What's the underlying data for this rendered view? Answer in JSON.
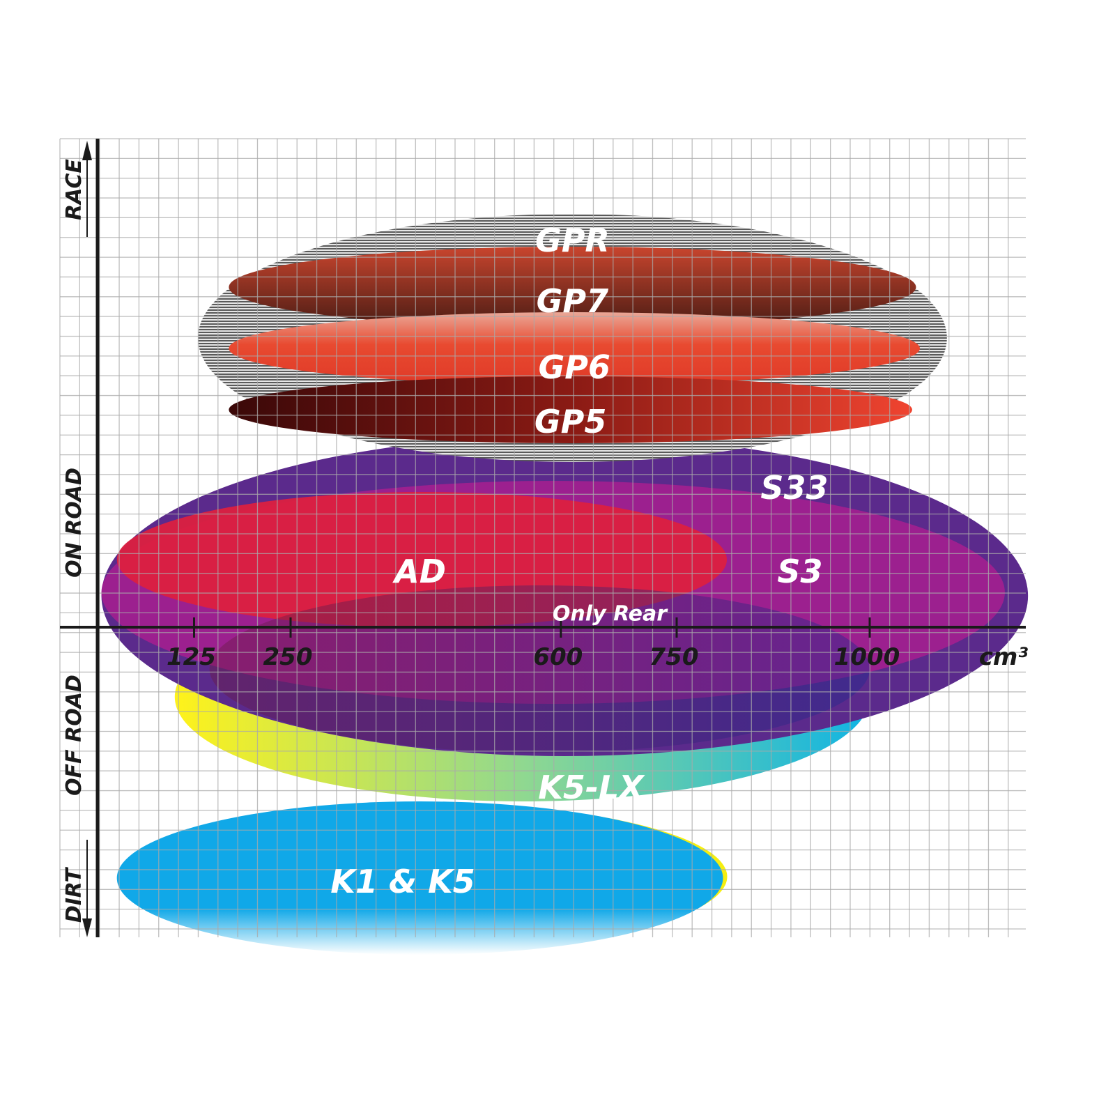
{
  "chart_data": {
    "type": "scatter",
    "title": "",
    "x_unit": "cm³",
    "x_ticks": [
      "125",
      "250",
      "600",
      "750",
      "1000"
    ],
    "x_tick_values": [
      125,
      250,
      600,
      750,
      1000
    ],
    "xlim": [
      0,
      1200
    ],
    "y_axis_labels": [
      "RACE",
      "ON ROAD",
      "OFF ROAD",
      "DIRT"
    ],
    "grid": true,
    "series": [
      {
        "name": "GPR",
        "cc_range": [
          130,
          1100
        ],
        "usage": "race",
        "color": "#9a9a9a"
      },
      {
        "name": "GP7",
        "cc_range": [
          170,
          1060
        ],
        "usage": "race",
        "color": "#b03a28"
      },
      {
        "name": "GP6",
        "cc_range": [
          170,
          1065
        ],
        "usage": "race",
        "color": "#e8452e"
      },
      {
        "name": "GP5",
        "cc_range": [
          170,
          1055
        ],
        "usage": "race / on road",
        "color": "#a01818"
      },
      {
        "name": "S33",
        "cc_range": [
          5,
          1205
        ],
        "usage": "on road",
        "color": "#5b2a8c"
      },
      {
        "name": "S3",
        "cc_range": [
          5,
          1175
        ],
        "usage": "on road",
        "color": "#a0208f"
      },
      {
        "name": "AD",
        "cc_range": [
          25,
          815
        ],
        "usage": "on road",
        "color": "#dc2040"
      },
      {
        "name": "Only Rear",
        "cc_range": [
          145,
          1000
        ],
        "usage": "on road / off road",
        "color": "#4a2a70"
      },
      {
        "name": "K5-LX",
        "cc_range": [
          100,
          1000
        ],
        "usage": "off road",
        "color": "#10b0e0"
      },
      {
        "name": "K1 & K5",
        "cc_range": [
          25,
          810
        ],
        "usage": "dirt",
        "color": "#10a8e8"
      }
    ]
  }
}
